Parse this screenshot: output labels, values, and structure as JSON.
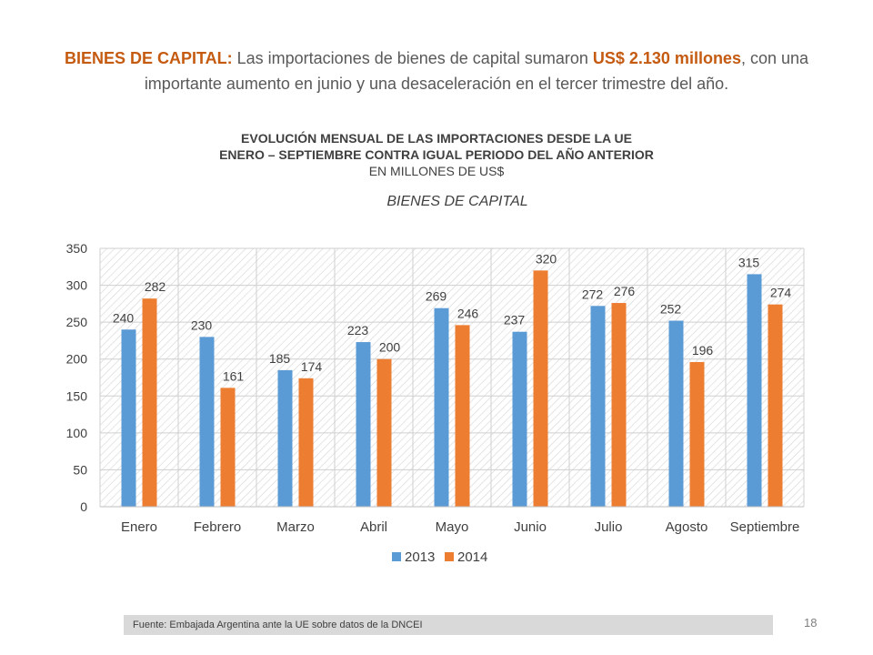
{
  "intro": {
    "lead": "BIENES DE CAPITAL:",
    "text1": " Las importaciones de bienes de capital sumaron ",
    "amount": "US$ 2.130 millones",
    "text2": ", con una importante aumento en junio y una desaceleración  en el tercer trimestre del año."
  },
  "chart_header": {
    "line1": "EVOLUCIÓN MENSUAL DE LAS IMPORTACIONES DESDE LA UE",
    "line2": "ENERO – SEPTIEMBRE CONTRA IGUAL PERIODO DEL AÑO ANTERIOR",
    "line3": "EN MILLONES DE US$"
  },
  "chart_data": {
    "type": "bar",
    "title": "BIENES DE CAPITAL",
    "categories": [
      "Enero",
      "Febrero",
      "Marzo",
      "Abril",
      "Mayo",
      "Junio",
      "Julio",
      "Agosto",
      "Septiembre"
    ],
    "series": [
      {
        "name": "2013",
        "color": "#5B9BD5",
        "values": [
          240,
          230,
          185,
          223,
          269,
          237,
          272,
          252,
          315
        ]
      },
      {
        "name": "2014",
        "color": "#ED7D31",
        "values": [
          282,
          161,
          174,
          200,
          246,
          320,
          276,
          196,
          274
        ]
      }
    ],
    "ylim": [
      0,
      350
    ],
    "yticks": [
      0,
      50,
      100,
      150,
      200,
      250,
      300,
      350
    ],
    "grid": true,
    "legend": "bottom",
    "data_labels": true
  },
  "footer": {
    "source": "Fuente: Embajada  Argentina ante la UE sobre datos de la DNCEI",
    "page": "18"
  }
}
